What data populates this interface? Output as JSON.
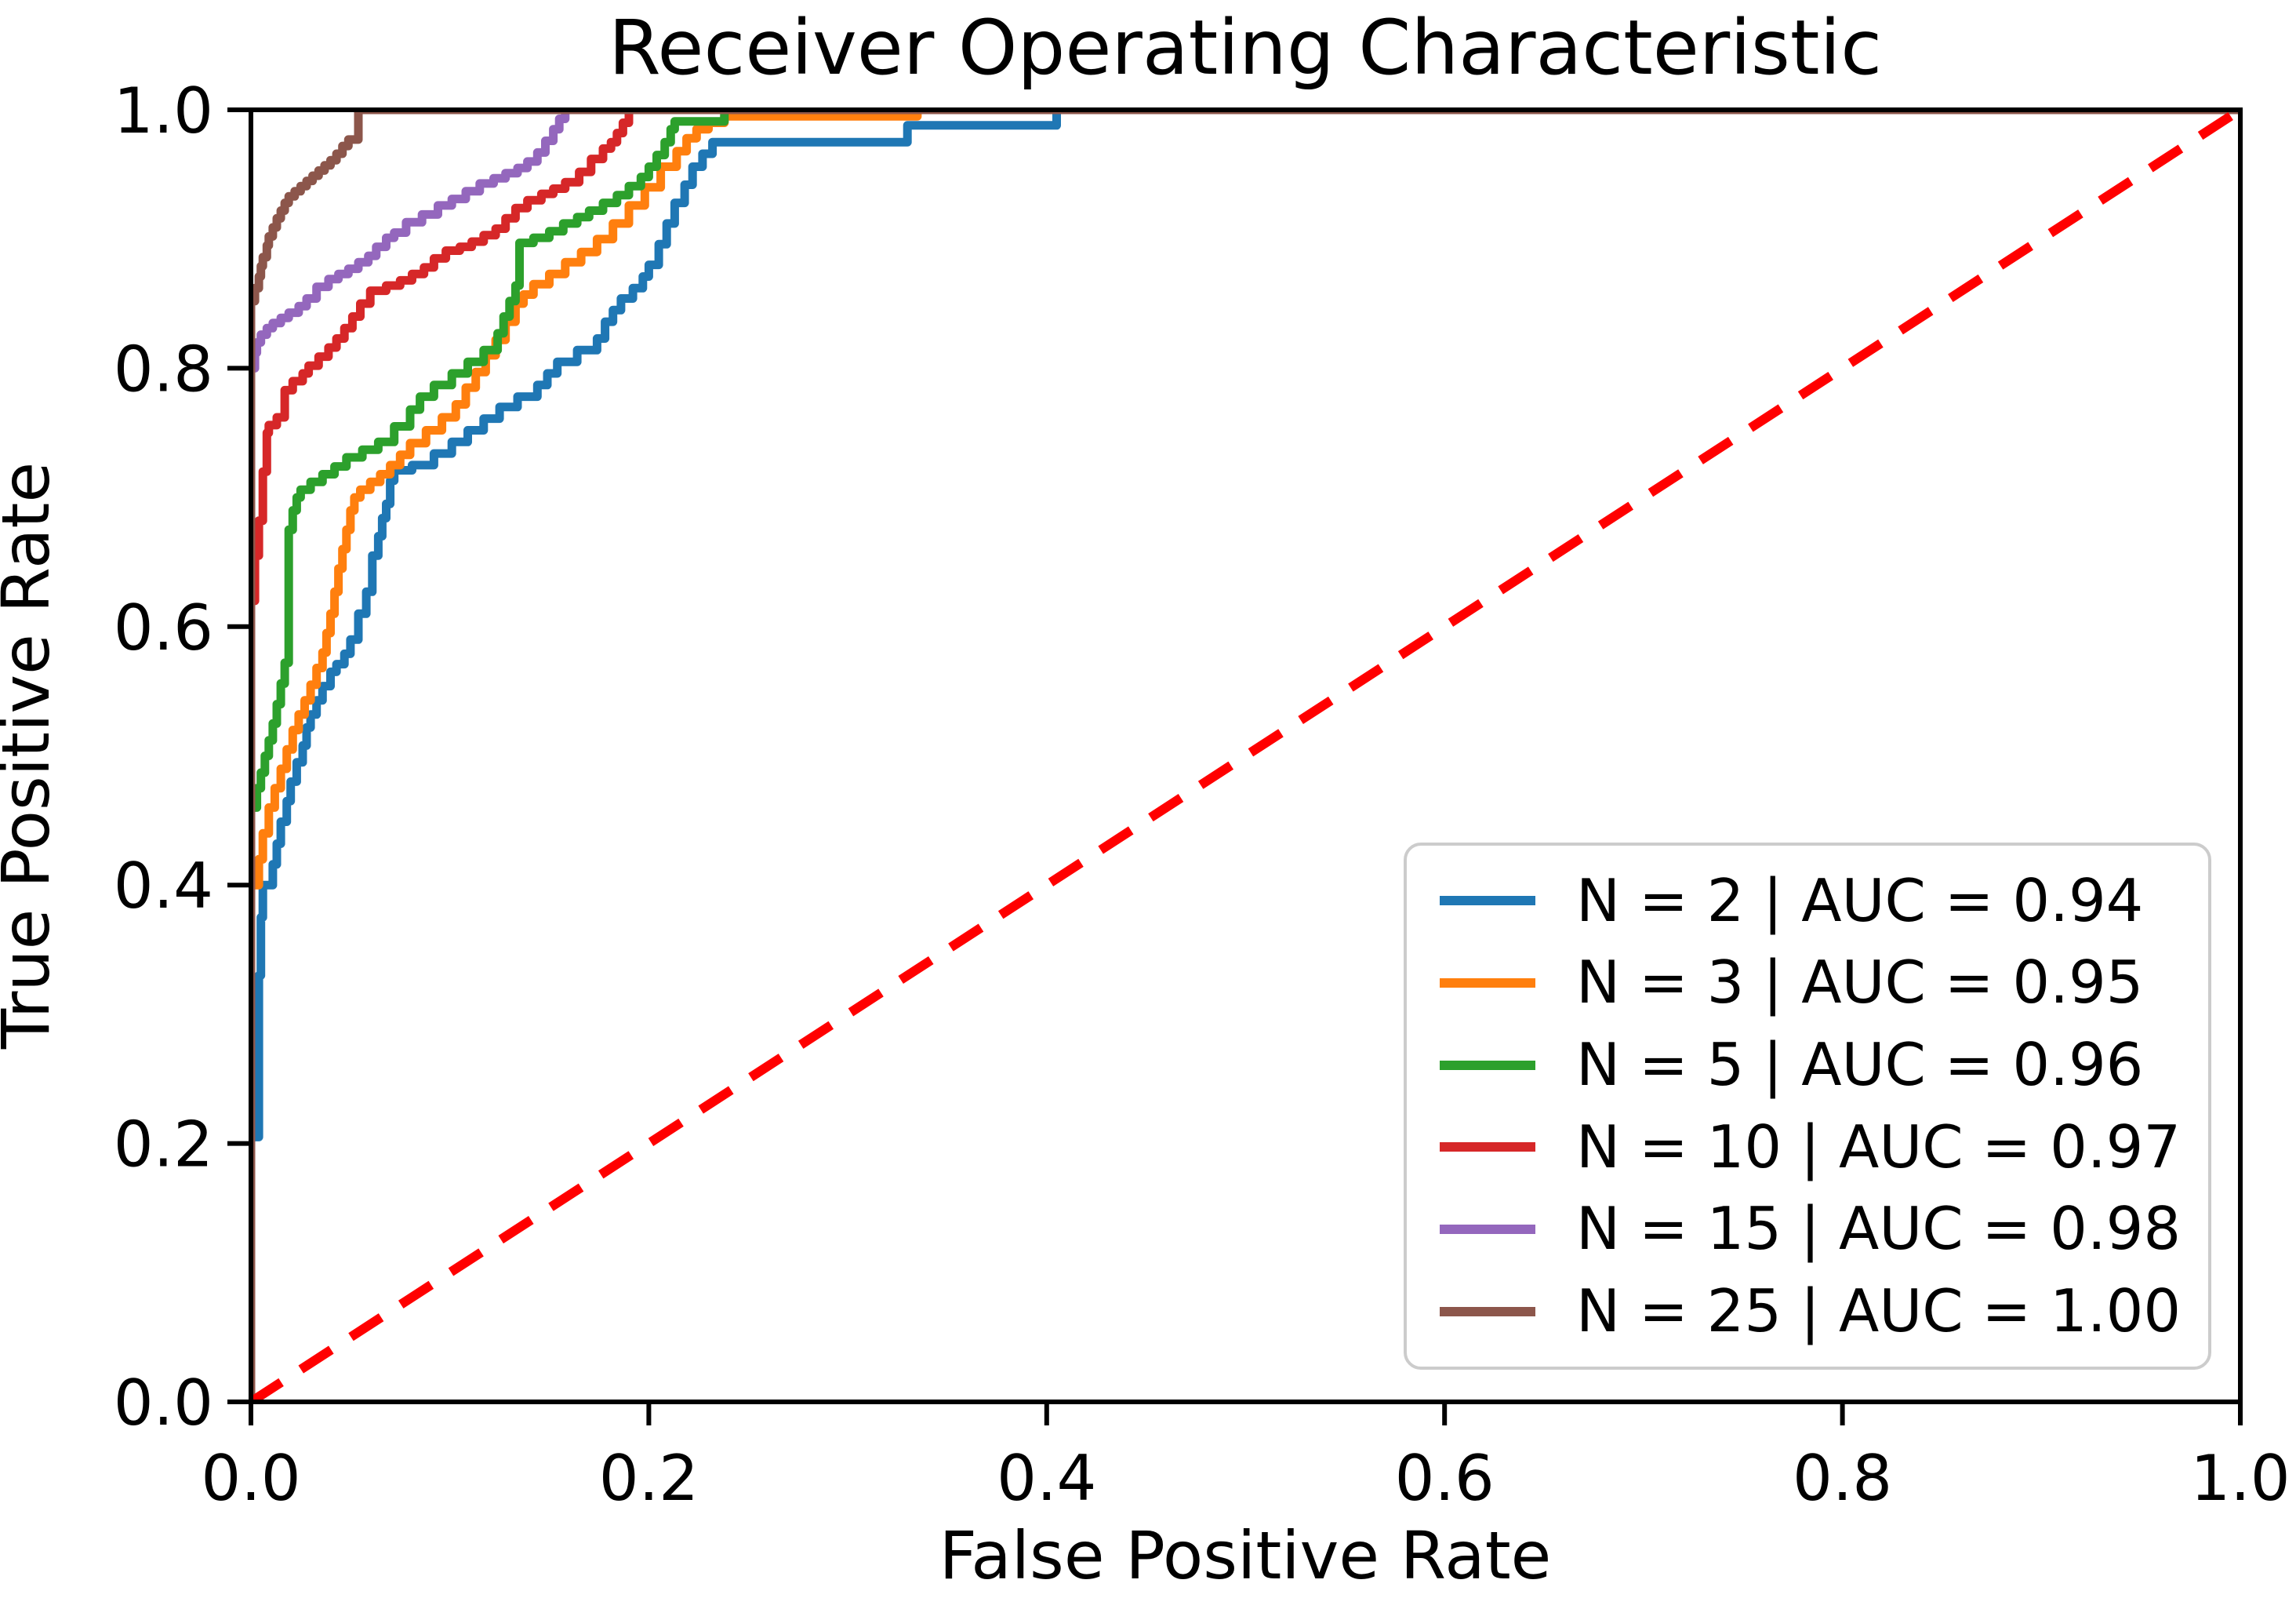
{
  "title": "Receiver Operating Characteristic",
  "axes": {
    "xlabel": "False Positive Rate",
    "ylabel": "True Positive Rate",
    "x_tick_labels": [
      "0.0",
      "0.2",
      "0.4",
      "0.6",
      "0.8",
      "1.0"
    ],
    "y_tick_labels": [
      "0.0",
      "0.2",
      "0.4",
      "0.6",
      "0.8",
      "1.0"
    ]
  },
  "colors": {
    "spine": "#000000",
    "tick": "#000000",
    "legend_border": "#cccccc",
    "chance_line": "#ff0000"
  },
  "chart_data": {
    "type": "line",
    "subtype": "roc-step-curves",
    "title": "Receiver Operating Characteristic",
    "xlabel": "False Positive Rate",
    "ylabel": "True Positive Rate",
    "xlim": [
      0.0,
      1.0
    ],
    "ylim": [
      0.0,
      1.0
    ],
    "x_ticks": [
      0.0,
      0.2,
      0.4,
      0.6,
      0.8,
      1.0
    ],
    "y_ticks": [
      0.0,
      0.2,
      0.4,
      0.6,
      0.8,
      1.0
    ],
    "grid": false,
    "legend_position": "lower right",
    "reference_line": {
      "name": "chance-diagonal",
      "style": "dashed",
      "color": "#ff0000",
      "points": [
        [
          0,
          0
        ],
        [
          1,
          1
        ]
      ]
    },
    "series": [
      {
        "label": "N = 2 | AUC = 0.94",
        "n": 2,
        "auc": 0.94,
        "color": "#1f77b4",
        "points": [
          [
            0,
            0
          ],
          [
            0,
            0.205
          ],
          [
            0.004,
            0.205
          ],
          [
            0.004,
            0.3
          ],
          [
            0.005,
            0.33
          ],
          [
            0.006,
            0.375
          ],
          [
            0.011,
            0.4
          ],
          [
            0.013,
            0.416
          ],
          [
            0.015,
            0.432
          ],
          [
            0.018,
            0.449
          ],
          [
            0.02,
            0.465
          ],
          [
            0.023,
            0.48
          ],
          [
            0.026,
            0.495
          ],
          [
            0.028,
            0.508
          ],
          [
            0.03,
            0.522
          ],
          [
            0.033,
            0.532
          ],
          [
            0.036,
            0.543
          ],
          [
            0.04,
            0.554
          ],
          [
            0.043,
            0.565
          ],
          [
            0.047,
            0.571
          ],
          [
            0.05,
            0.579
          ],
          [
            0.054,
            0.59
          ],
          [
            0.058,
            0.61
          ],
          [
            0.061,
            0.627
          ],
          [
            0.064,
            0.655
          ],
          [
            0.066,
            0.67
          ],
          [
            0.068,
            0.684
          ],
          [
            0.07,
            0.695
          ],
          [
            0.072,
            0.713
          ],
          [
            0.081,
            0.721
          ],
          [
            0.092,
            0.725
          ],
          [
            0.101,
            0.734
          ],
          [
            0.109,
            0.743
          ],
          [
            0.117,
            0.752
          ],
          [
            0.125,
            0.761
          ],
          [
            0.134,
            0.77
          ],
          [
            0.144,
            0.778
          ],
          [
            0.149,
            0.787
          ],
          [
            0.154,
            0.796
          ],
          [
            0.164,
            0.805
          ],
          [
            0.174,
            0.814
          ],
          [
            0.178,
            0.823
          ],
          [
            0.182,
            0.836
          ],
          [
            0.186,
            0.845
          ],
          [
            0.192,
            0.854
          ],
          [
            0.197,
            0.862
          ],
          [
            0.2,
            0.871
          ],
          [
            0.205,
            0.88
          ],
          [
            0.209,
            0.896
          ],
          [
            0.213,
            0.912
          ],
          [
            0.218,
            0.928
          ],
          [
            0.222,
            0.942
          ],
          [
            0.227,
            0.956
          ],
          [
            0.232,
            0.966
          ],
          [
            0.238,
            0.975
          ],
          [
            0.33,
            0.975
          ],
          [
            0.33,
            0.988
          ],
          [
            0.405,
            0.988
          ],
          [
            0.405,
            1
          ],
          [
            1,
            1
          ]
        ]
      },
      {
        "label": "N = 3 | AUC = 0.95",
        "n": 3,
        "auc": 0.95,
        "color": "#ff7f0e",
        "points": [
          [
            0,
            0
          ],
          [
            0,
            0.38
          ],
          [
            0.004,
            0.4
          ],
          [
            0.006,
            0.42
          ],
          [
            0.009,
            0.44
          ],
          [
            0.012,
            0.46
          ],
          [
            0.015,
            0.475
          ],
          [
            0.018,
            0.49
          ],
          [
            0.021,
            0.505
          ],
          [
            0.024,
            0.52
          ],
          [
            0.027,
            0.532
          ],
          [
            0.03,
            0.543
          ],
          [
            0.033,
            0.555
          ],
          [
            0.036,
            0.568
          ],
          [
            0.038,
            0.58
          ],
          [
            0.04,
            0.595
          ],
          [
            0.042,
            0.61
          ],
          [
            0.044,
            0.627
          ],
          [
            0.046,
            0.645
          ],
          [
            0.048,
            0.66
          ],
          [
            0.05,
            0.675
          ],
          [
            0.052,
            0.69
          ],
          [
            0.055,
            0.7
          ],
          [
            0.06,
            0.706
          ],
          [
            0.065,
            0.712
          ],
          [
            0.07,
            0.718
          ],
          [
            0.075,
            0.725
          ],
          [
            0.08,
            0.733
          ],
          [
            0.088,
            0.742
          ],
          [
            0.096,
            0.752
          ],
          [
            0.103,
            0.762
          ],
          [
            0.108,
            0.772
          ],
          [
            0.113,
            0.785
          ],
          [
            0.118,
            0.797
          ],
          [
            0.123,
            0.81
          ],
          [
            0.128,
            0.822
          ],
          [
            0.133,
            0.836
          ],
          [
            0.137,
            0.85
          ],
          [
            0.142,
            0.857
          ],
          [
            0.15,
            0.865
          ],
          [
            0.158,
            0.873
          ],
          [
            0.166,
            0.882
          ],
          [
            0.174,
            0.89
          ],
          [
            0.182,
            0.9
          ],
          [
            0.19,
            0.912
          ],
          [
            0.198,
            0.926
          ],
          [
            0.206,
            0.94
          ],
          [
            0.214,
            0.956
          ],
          [
            0.219,
            0.968
          ],
          [
            0.224,
            0.978
          ],
          [
            0.23,
            0.985
          ],
          [
            0.238,
            0.99
          ],
          [
            0.244,
            0.995
          ],
          [
            0.335,
            0.995
          ],
          [
            0.335,
            1
          ],
          [
            1,
            1
          ]
        ]
      },
      {
        "label": "N = 5 | AUC = 0.96",
        "n": 5,
        "auc": 0.96,
        "color": "#2ca02c",
        "points": [
          [
            0,
            0
          ],
          [
            0,
            0.44
          ],
          [
            0.003,
            0.46
          ],
          [
            0.005,
            0.475
          ],
          [
            0.007,
            0.487
          ],
          [
            0.009,
            0.5
          ],
          [
            0.011,
            0.512
          ],
          [
            0.013,
            0.525
          ],
          [
            0.015,
            0.54
          ],
          [
            0.017,
            0.556
          ],
          [
            0.019,
            0.572
          ],
          [
            0.019,
            0.66
          ],
          [
            0.021,
            0.675
          ],
          [
            0.023,
            0.69
          ],
          [
            0.025,
            0.7
          ],
          [
            0.03,
            0.706
          ],
          [
            0.036,
            0.712
          ],
          [
            0.042,
            0.718
          ],
          [
            0.048,
            0.724
          ],
          [
            0.056,
            0.731
          ],
          [
            0.064,
            0.737
          ],
          [
            0.072,
            0.743
          ],
          [
            0.08,
            0.755
          ],
          [
            0.085,
            0.768
          ],
          [
            0.092,
            0.778
          ],
          [
            0.101,
            0.787
          ],
          [
            0.109,
            0.796
          ],
          [
            0.117,
            0.805
          ],
          [
            0.124,
            0.814
          ],
          [
            0.127,
            0.827
          ],
          [
            0.13,
            0.84
          ],
          [
            0.133,
            0.852
          ],
          [
            0.135,
            0.864
          ],
          [
            0.135,
            0.892
          ],
          [
            0.142,
            0.897
          ],
          [
            0.15,
            0.901
          ],
          [
            0.157,
            0.906
          ],
          [
            0.164,
            0.912
          ],
          [
            0.17,
            0.917
          ],
          [
            0.177,
            0.922
          ],
          [
            0.184,
            0.928
          ],
          [
            0.19,
            0.934
          ],
          [
            0.196,
            0.941
          ],
          [
            0.2,
            0.948
          ],
          [
            0.204,
            0.956
          ],
          [
            0.208,
            0.965
          ],
          [
            0.211,
            0.975
          ],
          [
            0.213,
            0.985
          ],
          [
            0.216,
            0.991
          ],
          [
            0.238,
            0.991
          ],
          [
            0.238,
            1
          ],
          [
            1,
            1
          ]
        ]
      },
      {
        "label": "N = 10 | AUC = 0.97",
        "n": 10,
        "auc": 0.97,
        "color": "#d62728",
        "points": [
          [
            0,
            0
          ],
          [
            0,
            0.6
          ],
          [
            0.002,
            0.62
          ],
          [
            0.004,
            0.655
          ],
          [
            0.006,
            0.682
          ],
          [
            0.008,
            0.72
          ],
          [
            0.009,
            0.75
          ],
          [
            0.013,
            0.756
          ],
          [
            0.017,
            0.762
          ],
          [
            0.021,
            0.783
          ],
          [
            0.026,
            0.79
          ],
          [
            0.029,
            0.796
          ],
          [
            0.034,
            0.802
          ],
          [
            0.039,
            0.809
          ],
          [
            0.043,
            0.816
          ],
          [
            0.047,
            0.823
          ],
          [
            0.051,
            0.831
          ],
          [
            0.055,
            0.84
          ],
          [
            0.06,
            0.85
          ],
          [
            0.068,
            0.86
          ],
          [
            0.075,
            0.864
          ],
          [
            0.081,
            0.868
          ],
          [
            0.087,
            0.873
          ],
          [
            0.092,
            0.878
          ],
          [
            0.098,
            0.885
          ],
          [
            0.105,
            0.891
          ],
          [
            0.111,
            0.894
          ],
          [
            0.117,
            0.898
          ],
          [
            0.123,
            0.903
          ],
          [
            0.128,
            0.908
          ],
          [
            0.133,
            0.916
          ],
          [
            0.139,
            0.924
          ],
          [
            0.146,
            0.93
          ],
          [
            0.152,
            0.935
          ],
          [
            0.158,
            0.939
          ],
          [
            0.165,
            0.944
          ],
          [
            0.171,
            0.952
          ],
          [
            0.177,
            0.962
          ],
          [
            0.181,
            0.97
          ],
          [
            0.184,
            0.975
          ],
          [
            0.187,
            0.982
          ],
          [
            0.19,
            0.99
          ],
          [
            0.192,
            1
          ],
          [
            1,
            1
          ]
        ]
      },
      {
        "label": "N = 15 | AUC = 0.98",
        "n": 15,
        "auc": 0.98,
        "color": "#9467bd",
        "points": [
          [
            0,
            0
          ],
          [
            0,
            0.78
          ],
          [
            0.002,
            0.8
          ],
          [
            0.003,
            0.812
          ],
          [
            0.005,
            0.82
          ],
          [
            0.008,
            0.826
          ],
          [
            0.011,
            0.831
          ],
          [
            0.015,
            0.835
          ],
          [
            0.019,
            0.839
          ],
          [
            0.024,
            0.843
          ],
          [
            0.028,
            0.848
          ],
          [
            0.033,
            0.854
          ],
          [
            0.039,
            0.863
          ],
          [
            0.044,
            0.869
          ],
          [
            0.049,
            0.873
          ],
          [
            0.054,
            0.877
          ],
          [
            0.059,
            0.882
          ],
          [
            0.063,
            0.887
          ],
          [
            0.068,
            0.894
          ],
          [
            0.072,
            0.901
          ],
          [
            0.078,
            0.905
          ],
          [
            0.086,
            0.913
          ],
          [
            0.094,
            0.919
          ],
          [
            0.101,
            0.926
          ],
          [
            0.108,
            0.931
          ],
          [
            0.115,
            0.937
          ],
          [
            0.122,
            0.943
          ],
          [
            0.128,
            0.947
          ],
          [
            0.134,
            0.951
          ],
          [
            0.139,
            0.955
          ],
          [
            0.144,
            0.96
          ],
          [
            0.148,
            0.967
          ],
          [
            0.152,
            0.976
          ],
          [
            0.155,
            0.985
          ],
          [
            0.158,
            0.993
          ],
          [
            0.16,
            1
          ],
          [
            1,
            1
          ]
        ]
      },
      {
        "label": "N = 25 | AUC = 1.00",
        "n": 25,
        "auc": 1.0,
        "color": "#8c564b",
        "points": [
          [
            0,
            0
          ],
          [
            0,
            0.84
          ],
          [
            0.002,
            0.852
          ],
          [
            0.004,
            0.862
          ],
          [
            0.005,
            0.871
          ],
          [
            0.006,
            0.879
          ],
          [
            0.008,
            0.886
          ],
          [
            0.009,
            0.895
          ],
          [
            0.011,
            0.902
          ],
          [
            0.013,
            0.909
          ],
          [
            0.015,
            0.916
          ],
          [
            0.017,
            0.922
          ],
          [
            0.019,
            0.928
          ],
          [
            0.022,
            0.933
          ],
          [
            0.025,
            0.937
          ],
          [
            0.028,
            0.941
          ],
          [
            0.031,
            0.945
          ],
          [
            0.034,
            0.949
          ],
          [
            0.037,
            0.953
          ],
          [
            0.04,
            0.957
          ],
          [
            0.043,
            0.961
          ],
          [
            0.046,
            0.966
          ],
          [
            0.049,
            0.972
          ],
          [
            0.051,
            0.977
          ],
          [
            0.054,
            0.977
          ],
          [
            0.054,
            1
          ],
          [
            1,
            1
          ]
        ]
      }
    ]
  }
}
